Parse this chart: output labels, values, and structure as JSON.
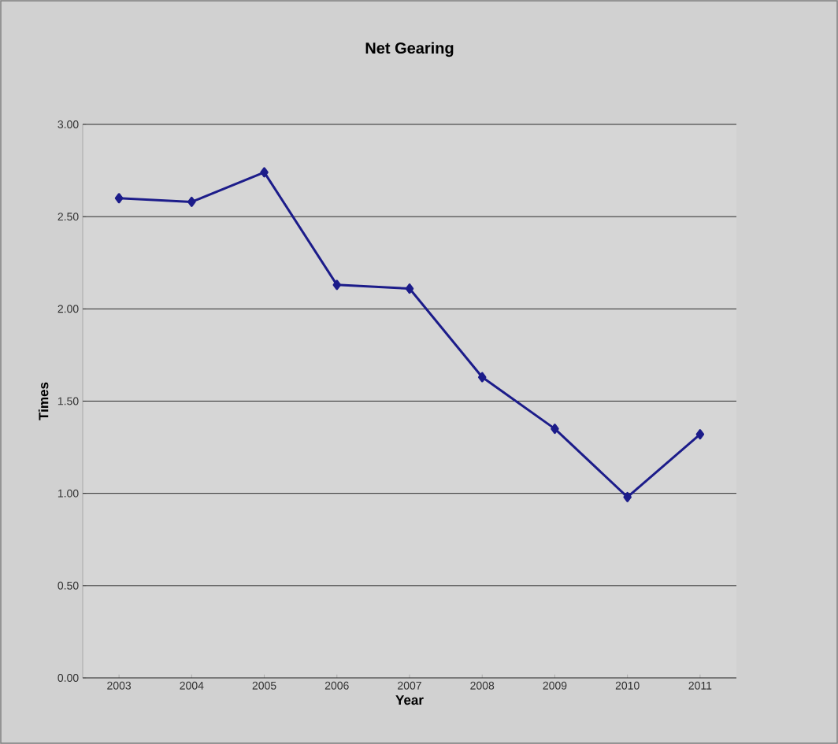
{
  "chart_data": {
    "type": "line",
    "title": "Net Gearing",
    "xlabel": "Year",
    "ylabel": "Times",
    "categories": [
      "2003",
      "2004",
      "2005",
      "2006",
      "2007",
      "2008",
      "2009",
      "2010",
      "2011"
    ],
    "series": [
      {
        "color": "#1c1c8a",
        "values": [
          2.6,
          2.58,
          2.74,
          2.13,
          2.11,
          1.63,
          1.35,
          0.98,
          1.32
        ]
      }
    ],
    "ylim": [
      0,
      3
    ],
    "yticks": [
      {
        "value": 0,
        "label": "0.00"
      },
      {
        "value": 0.5,
        "label": "0.50"
      },
      {
        "value": 1,
        "label": "1.00"
      },
      {
        "value": 1.5,
        "label": "1.50"
      },
      {
        "value": 2,
        "label": "2.00"
      },
      {
        "value": 2.5,
        "label": "2.50"
      },
      {
        "value": 3,
        "label": "3.00"
      }
    ],
    "grid": "y",
    "marker": "diamond",
    "line_style": "solid"
  }
}
